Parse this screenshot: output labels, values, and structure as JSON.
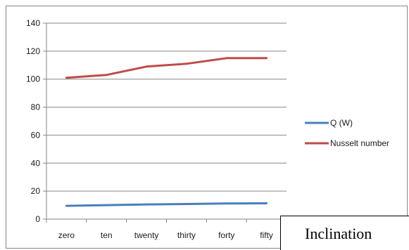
{
  "chart_data": {
    "type": "line",
    "categories": [
      "zero",
      "ten",
      "twenty",
      "thirty",
      "forty",
      "fifty"
    ],
    "series": [
      {
        "name": "Q (W)",
        "values": [
          9.5,
          10.0,
          10.5,
          10.8,
          11.2,
          11.3
        ],
        "color": "#4a7ebb"
      },
      {
        "name": "Nusselt number",
        "values": [
          101,
          103,
          109,
          111,
          115,
          115
        ],
        "color": "#be4b48"
      }
    ],
    "ylim": [
      0,
      140
    ],
    "yticks": [
      0,
      20,
      40,
      60,
      80,
      100,
      120,
      140
    ],
    "grid": "horizontal",
    "legend": "right"
  },
  "annotation": {
    "text": "Inclination"
  }
}
